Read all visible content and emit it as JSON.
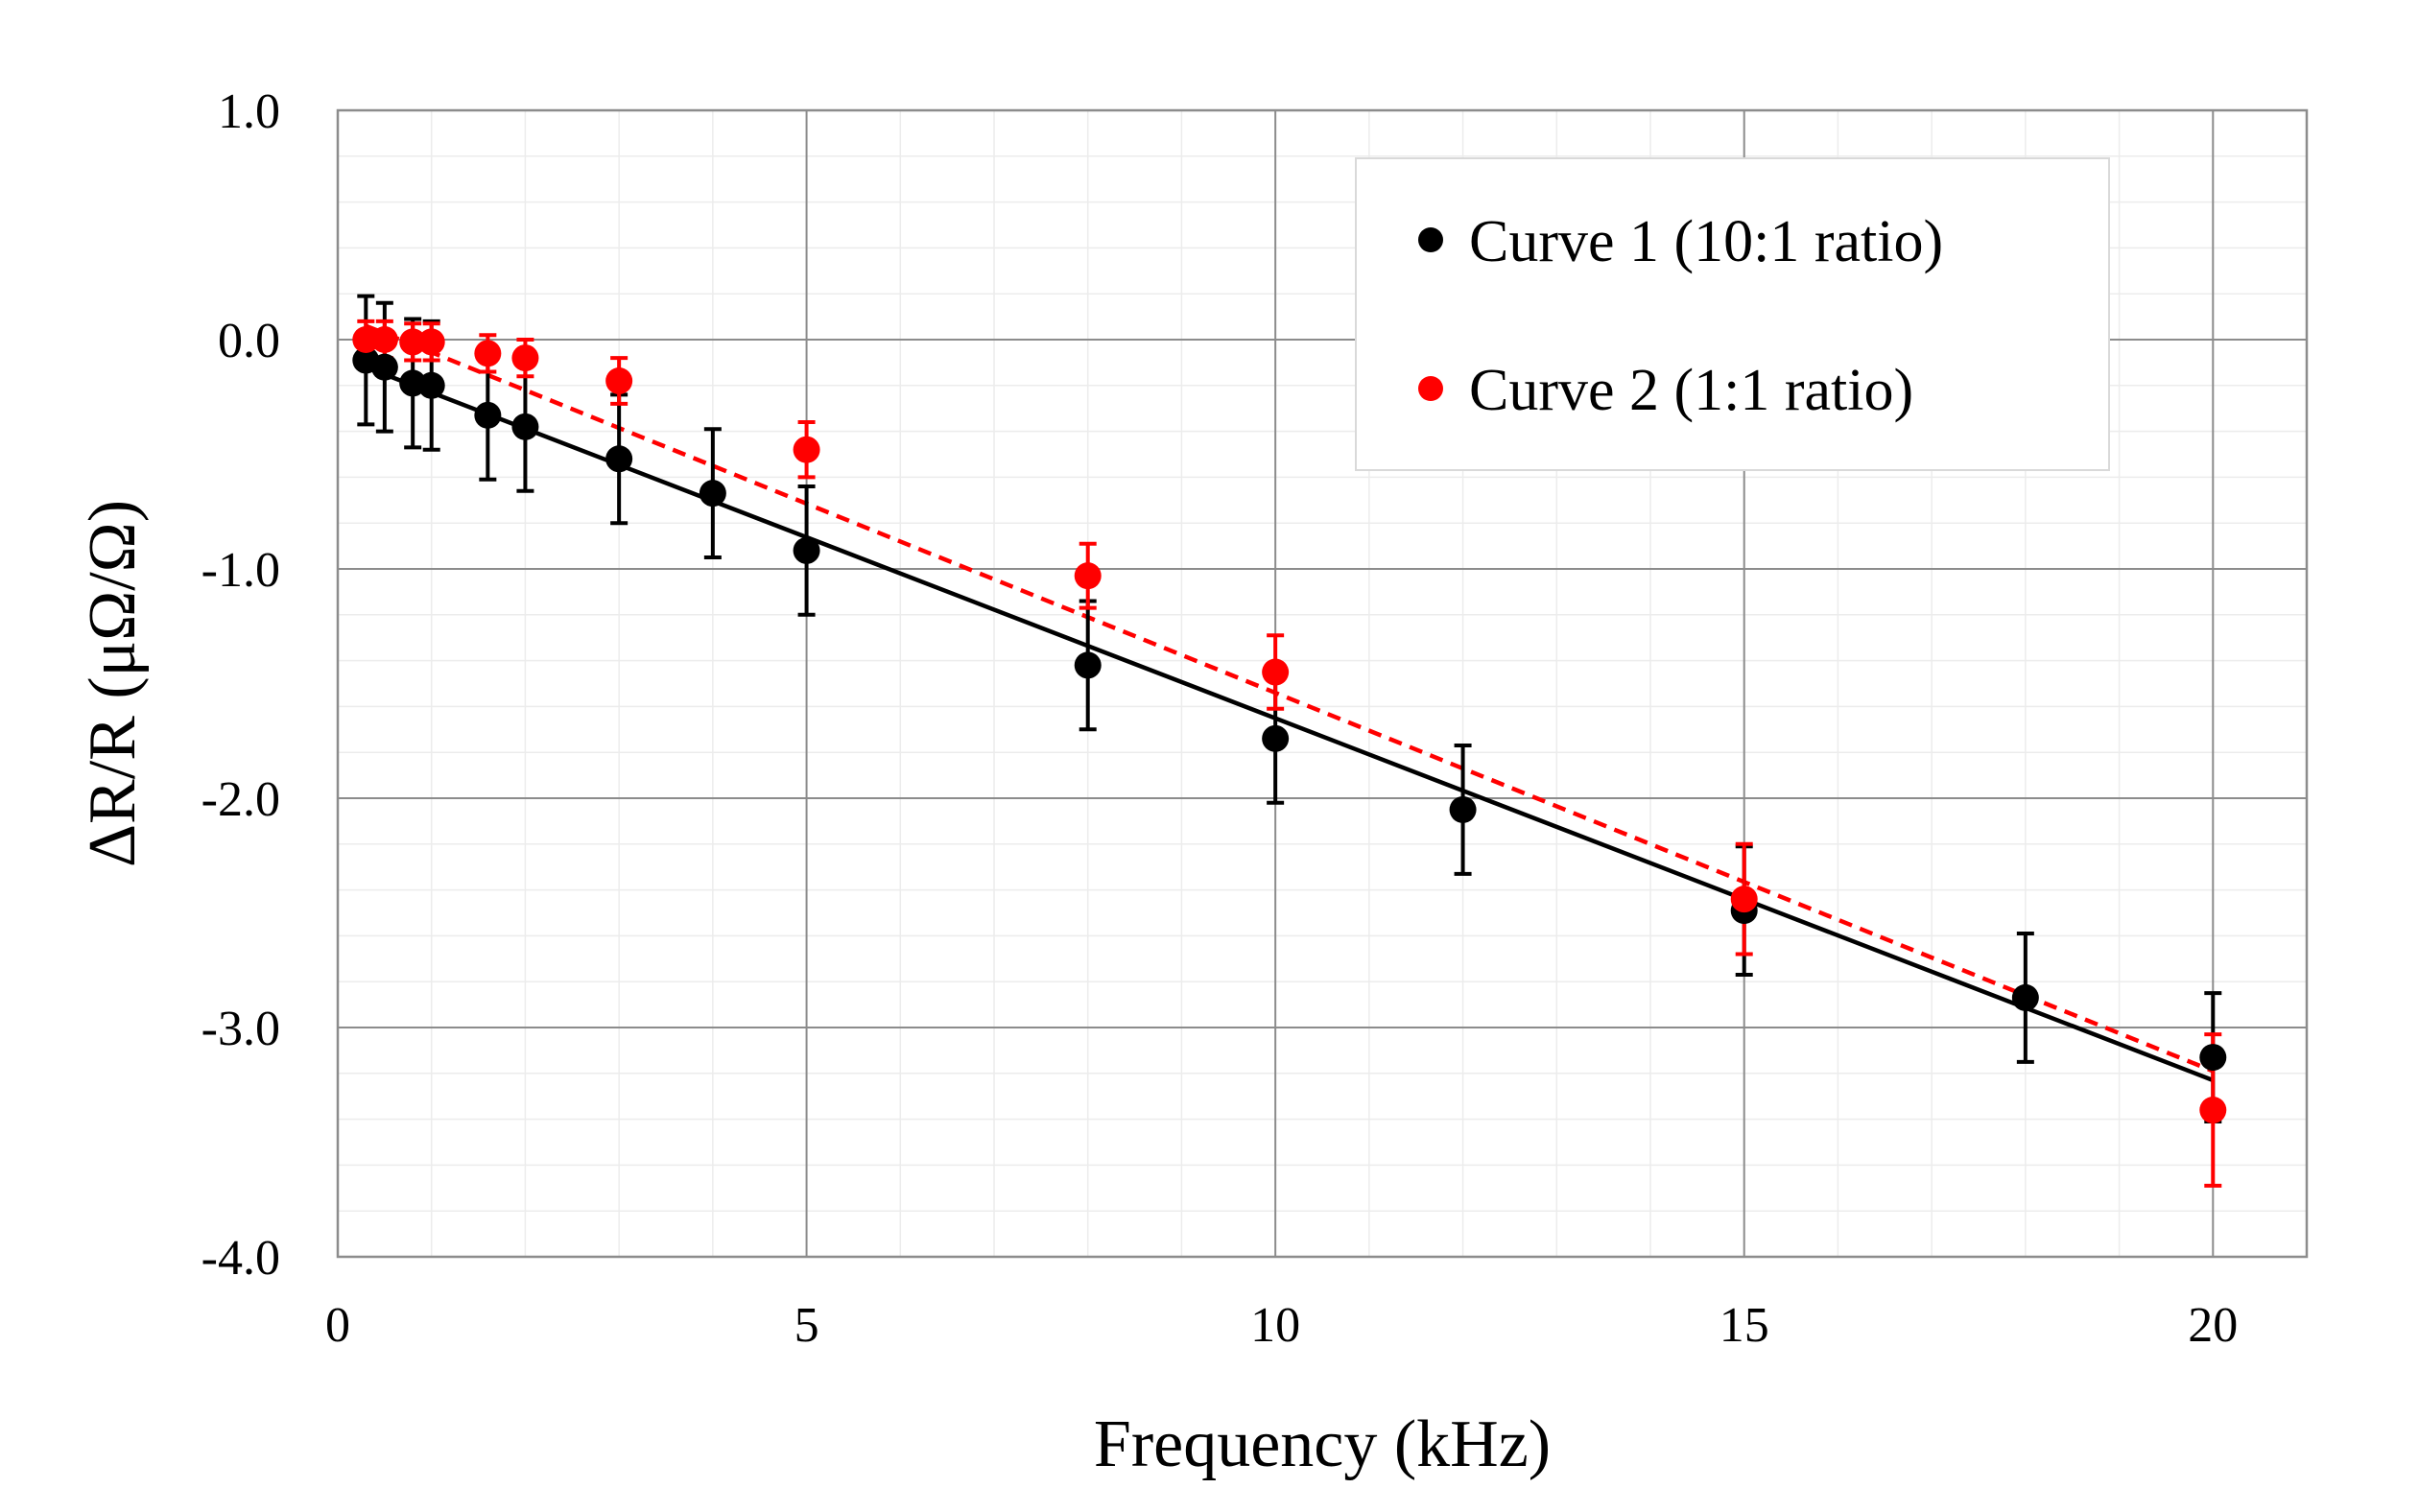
{
  "chart_data": {
    "type": "scatter",
    "xlabel": "Frequency (kHz)",
    "ylabel": "ΔR/R (μΩ/Ω)",
    "xlim": [
      0,
      21
    ],
    "ylim": [
      -4.0,
      1.0
    ],
    "x_major_ticks": [
      0,
      5,
      10,
      15,
      20
    ],
    "x_tick_labels": [
      "0",
      "5",
      "10",
      "15",
      "20"
    ],
    "y_major_ticks": [
      1.0,
      0.0,
      -1.0,
      -2.0,
      -3.0,
      -4.0
    ],
    "y_tick_labels": [
      "1.0",
      "0.0",
      "-1.0",
      "-2.0",
      "-3.0",
      "-4.0"
    ],
    "x_minor_step": 1,
    "y_minor_step": 0.2,
    "grid": true,
    "legend_position": "top-right",
    "series": [
      {
        "name": "Curve 1 (10:1 ratio)",
        "color": "#000000",
        "marker": "circle",
        "x": [
          0.3,
          0.5,
          0.8,
          1.0,
          1.6,
          2.0,
          3.0,
          4.0,
          5.0,
          8.0,
          10.0,
          12.0,
          15.0,
          18.0,
          20.0
        ],
        "y": [
          -0.09,
          -0.12,
          -0.19,
          -0.2,
          -0.33,
          -0.38,
          -0.52,
          -0.67,
          -0.92,
          -1.42,
          -1.74,
          -2.05,
          -2.49,
          -2.87,
          -3.13
        ],
        "error": 0.28,
        "trendline": {
          "style": "solid",
          "x": [
            0.3,
            20.0
          ],
          "y": [
            -0.12,
            -3.23
          ]
        }
      },
      {
        "name": "Curve 2 (1:1 ratio)",
        "color": "#ff0000",
        "marker": "circle",
        "x": [
          0.3,
          0.5,
          0.8,
          1.0,
          1.6,
          2.0,
          3.0,
          5.0,
          8.0,
          10.0,
          15.0,
          20.0
        ],
        "y": [
          0.0,
          0.0,
          -0.01,
          -0.01,
          -0.06,
          -0.08,
          -0.18,
          -0.48,
          -1.03,
          -1.45,
          -2.44,
          -3.36
        ],
        "error": [
          0.08,
          0.08,
          0.08,
          0.08,
          0.08,
          0.08,
          0.1,
          0.12,
          0.14,
          0.16,
          0.24,
          0.33
        ],
        "trendline": {
          "style": "dashed",
          "x": [
            0.3,
            20.0
          ],
          "y": [
            0.06,
            -3.19
          ]
        }
      }
    ]
  }
}
